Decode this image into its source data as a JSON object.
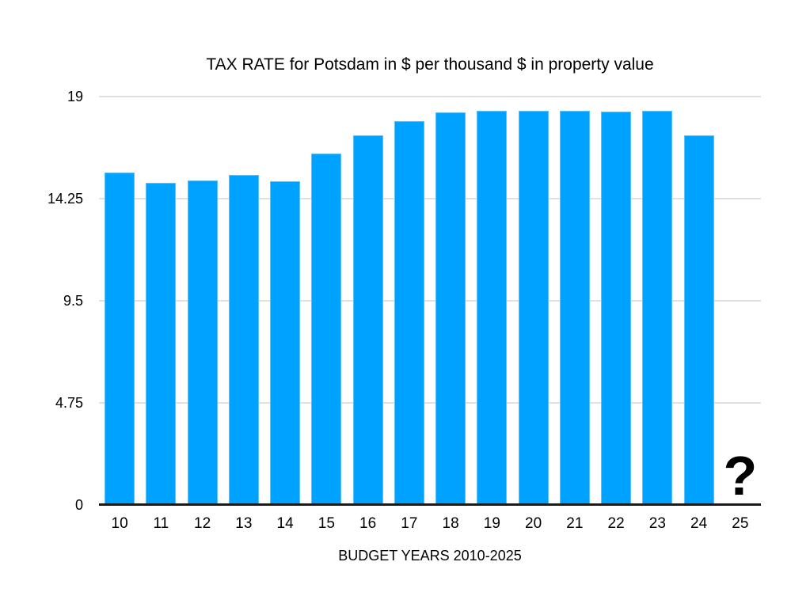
{
  "chart_data": {
    "type": "bar",
    "title": "TAX RATE for Potsdam in $ per thousand $ in property value",
    "xlabel": "BUDGET YEARS 2010-2025",
    "ylabel": "",
    "categories": [
      "10",
      "11",
      "12",
      "13",
      "14",
      "15",
      "16",
      "17",
      "18",
      "19",
      "20",
      "21",
      "22",
      "23",
      "24",
      "25"
    ],
    "values": [
      15.45,
      15.0,
      15.1,
      15.35,
      15.05,
      16.35,
      17.2,
      17.85,
      18.25,
      18.35,
      18.35,
      18.35,
      18.3,
      18.35,
      17.2,
      null
    ],
    "missing_value_marker": "?",
    "ylim": [
      0,
      19
    ],
    "yticks": [
      0,
      4.75,
      9.5,
      14.25,
      19
    ],
    "ytick_labels": [
      "0",
      "4.75",
      "9.5",
      "14.25",
      "19"
    ],
    "grid": true,
    "legend": false,
    "bar_color": "#00A2FF",
    "gridline_color": "#E0E0E0",
    "axis_color": "#1A1A1A",
    "text_color": "#000000"
  }
}
